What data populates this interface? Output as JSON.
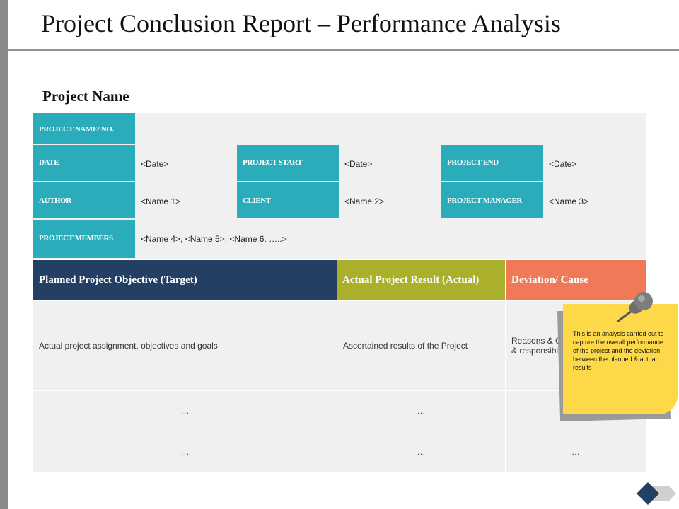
{
  "title": "Project Conclusion Report – Performance Analysis",
  "section_title": "Project Name",
  "info": {
    "project_name_label": "PROJECT NAME/ NO.",
    "date_label": "DATE",
    "date_value": "<Date>",
    "project_start_label": "PROJECT START",
    "project_start_value": "<Date>",
    "project_end_label": "PROJECT END",
    "project_end_value": "<Date>",
    "author_label": "AUTHOR",
    "author_value": "<Name 1>",
    "client_label": "CLIENT",
    "client_value": "<Name 2>",
    "project_manager_label": "PROJECT MANAGER",
    "project_manager_value": "<Name 3>",
    "project_members_label": "PROJECT MEMBERS",
    "project_members_value": "<Name 4>, <Name 5>, <Name 6, …..>"
  },
  "table": {
    "headers": {
      "planned": "Planned Project Objective (Target)",
      "actual": "Actual Project Result (Actual)",
      "deviation": "Deviation/ Cause"
    },
    "row1": {
      "planned": "Actual project assignment, objectives and goals",
      "actual": "Ascertained results of the Project",
      "deviation_line1": "Reasons & C",
      "deviation_line2": "& responsible"
    },
    "row2": {
      "planned": "…",
      "actual": "…"
    },
    "row3": {
      "planned": "…",
      "actual": "…",
      "deviation": "…"
    }
  },
  "note": {
    "text": "This is an analysis carried out to capture the overall performance of the project and the deviation between the planned & actual results"
  },
  "colors": {
    "teal": "#2bacbb",
    "navy": "#233f63",
    "olive": "#aab02a",
    "coral": "#f07a58",
    "note_yellow": "#fdd94a"
  }
}
